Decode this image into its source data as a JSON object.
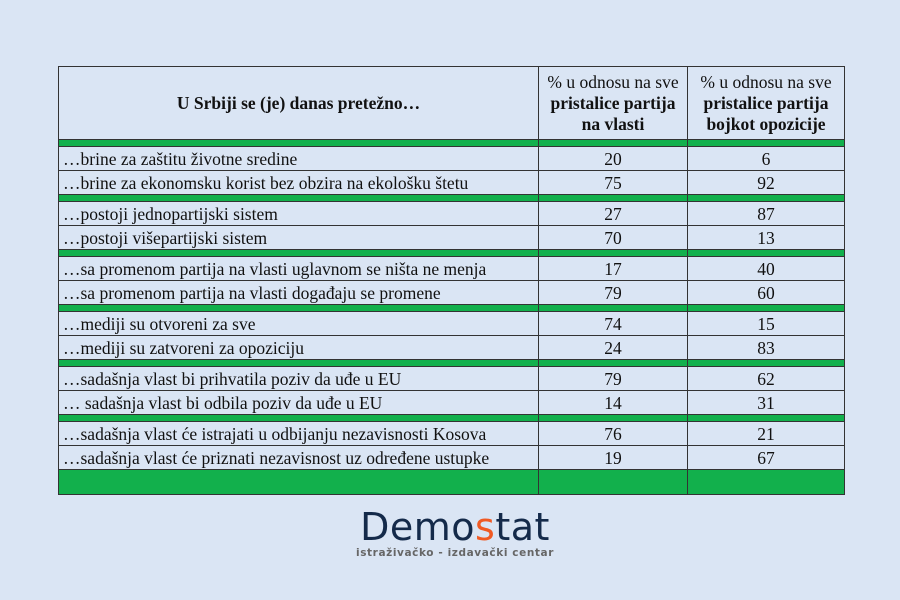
{
  "table": {
    "header": {
      "question": "U Srbiji se (je) danas pretežno…",
      "col1_plain": "% u odnosu na sve ",
      "col1_bold": "pristalice partija na vlasti",
      "col2_plain": "% u odnosu na sve ",
      "col2_bold": "pristalice partija bojkot opozicije"
    },
    "rows": [
      {
        "q": "…brine za zaštitu životne sredine",
        "a": "20",
        "b": "6"
      },
      {
        "q": "…brine za ekonomsku korist bez obzira na ekološku štetu",
        "a": "75",
        "b": "92"
      },
      {
        "q": "…postoji jednopartijski sistem",
        "a": "27",
        "b": "87"
      },
      {
        "q": "…postoji višepartijski sistem",
        "a": "70",
        "b": "13"
      },
      {
        "q": "…sa promenom partija na vlasti uglavnom se ništa ne menja",
        "a": "17",
        "b": "40"
      },
      {
        "q": "…sa promenom partija na vlasti događaju se promene",
        "a": "79",
        "b": "60"
      },
      {
        "q": "…mediji su otvoreni za sve",
        "a": "74",
        "b": "15"
      },
      {
        "q": "…mediji su zatvoreni za opoziciju",
        "a": "24",
        "b": "83"
      },
      {
        "q": "…sadašnja vlast bi prihvatila poziv da uđe u EU",
        "a": "79",
        "b": "62"
      },
      {
        "q": "…  sadašnja vlast bi odbila poziv da uđe u EU",
        "a": "14",
        "b": "31"
      },
      {
        "q": "…sadašnja vlast će istrajati u odbijanju nezavisnosti Kosova",
        "a": "76",
        "b": "21"
      },
      {
        "q": "…sadašnja vlast će priznati nezavisnost uz određene ustupke",
        "a": "19",
        "b": "67"
      }
    ],
    "separator_color": "#12b04c"
  },
  "logo": {
    "name_part1": "Demo",
    "name_accent": "s",
    "name_part2": "tat",
    "tagline": "istraživačko - izdavački  centar",
    "accent_color": "#f05a24",
    "text_color": "#142a4a"
  }
}
